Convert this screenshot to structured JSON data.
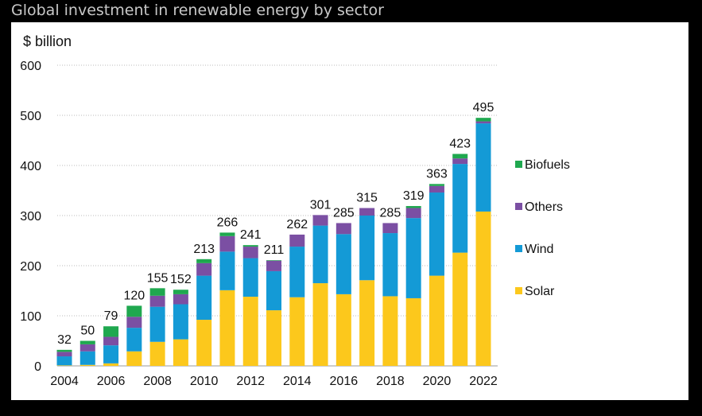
{
  "title": "Global investment in renewable energy by sector",
  "chart_data": {
    "type": "bar",
    "stacked": true,
    "title": "Global investment in renewable energy by sector",
    "ylabel": "$ billion",
    "xlabel": "",
    "ylim": [
      0,
      600
    ],
    "yticks": [
      0,
      100,
      200,
      300,
      400,
      500,
      600
    ],
    "xtick_labels": [
      "2004",
      "2006",
      "2008",
      "2010",
      "2012",
      "2014",
      "2016",
      "2018",
      "2020",
      "2022"
    ],
    "grid": "horizontal dotted",
    "legend_position": "right",
    "categories": [
      "2004",
      "2005",
      "2006",
      "2007",
      "2008",
      "2009",
      "2010",
      "2011",
      "2012",
      "2013",
      "2014",
      "2015",
      "2016",
      "2017",
      "2018",
      "2019",
      "2020",
      "2021",
      "2022"
    ],
    "totals": [
      32,
      50,
      79,
      120,
      155,
      152,
      213,
      266,
      241,
      211,
      262,
      301,
      285,
      315,
      285,
      319,
      363,
      423,
      495
    ],
    "series": [
      {
        "name": "Solar",
        "color": "#fcc81c",
        "values": [
          1,
          2,
          5,
          29,
          48,
          53,
          92,
          151,
          138,
          111,
          137,
          165,
          143,
          171,
          139,
          135,
          180,
          226,
          308
        ]
      },
      {
        "name": "Wind",
        "color": "#149ad6",
        "values": [
          18,
          27,
          36,
          47,
          70,
          70,
          88,
          77,
          77,
          78,
          101,
          115,
          120,
          129,
          126,
          160,
          166,
          177,
          176
        ]
      },
      {
        "name": "Others",
        "color": "#7b4fa3",
        "values": [
          9,
          14,
          17,
          22,
          22,
          20,
          25,
          31,
          23,
          21,
          24,
          21,
          22,
          15,
          20,
          20,
          13,
          11,
          4
        ]
      },
      {
        "name": "Biofuels",
        "color": "#1fa84f",
        "values": [
          4,
          7,
          21,
          22,
          15,
          9,
          8,
          7,
          3,
          1,
          0,
          0,
          0,
          0,
          0,
          4,
          4,
          9,
          7
        ]
      }
    ]
  }
}
